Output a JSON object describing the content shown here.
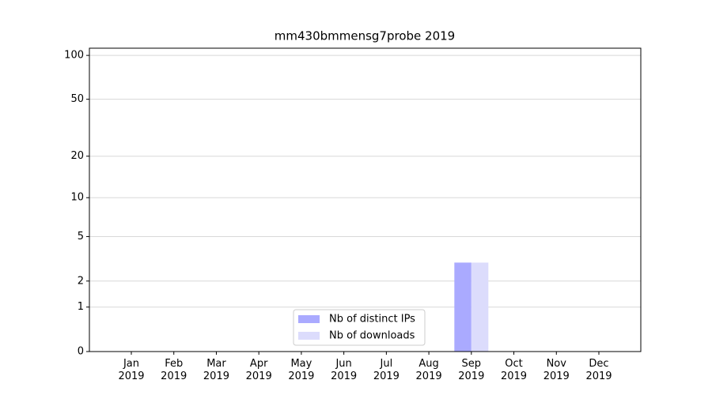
{
  "chart_data": {
    "type": "bar",
    "title": "mm430bmmensg7probe 2019",
    "categories": [
      "Jan\n2019",
      "Feb\n2019",
      "Mar\n2019",
      "Apr\n2019",
      "May\n2019",
      "Jun\n2019",
      "Jul\n2019",
      "Aug\n2019",
      "Sep\n2019",
      "Oct\n2019",
      "Nov\n2019",
      "Dec\n2019"
    ],
    "series": [
      {
        "name": "Nb of distinct IPs",
        "color": "#aaaaff",
        "values": [
          0,
          0,
          0,
          0,
          0,
          0,
          0,
          0,
          3,
          0,
          0,
          0
        ]
      },
      {
        "name": "Nb of downloads",
        "color": "#dcdcfc",
        "values": [
          0,
          0,
          0,
          0,
          0,
          0,
          0,
          0,
          3,
          0,
          0,
          0
        ]
      }
    ],
    "ylim": [
      0,
      112
    ],
    "yticks": [
      0,
      1,
      2,
      5,
      10,
      20,
      50,
      100
    ],
    "grid": true,
    "legend": "lower center"
  }
}
